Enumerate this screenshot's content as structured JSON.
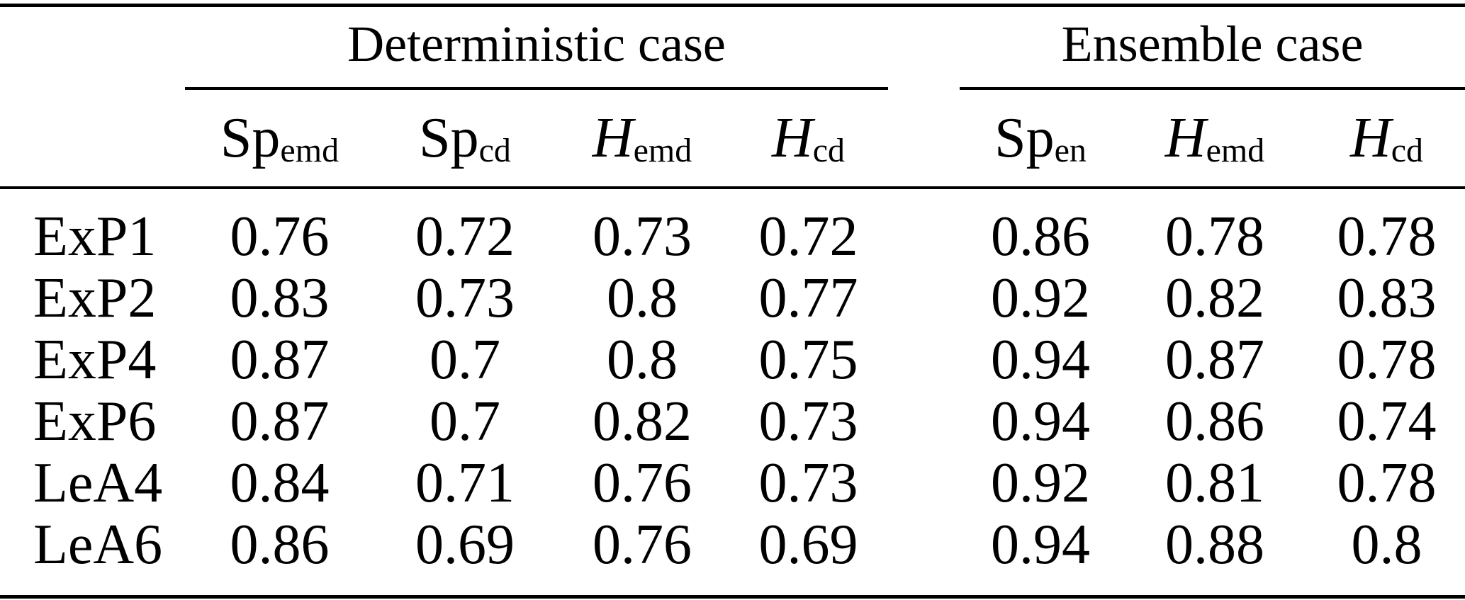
{
  "table": {
    "groups": [
      "Deterministic case",
      "Ensemble case"
    ],
    "columns": [
      {
        "base": "Sp",
        "sub": "emd"
      },
      {
        "base": "Sp",
        "sub": "cd"
      },
      {
        "base": "H",
        "sub": "emd"
      },
      {
        "base": "H",
        "sub": "cd"
      },
      {
        "base": "Sp",
        "sub": "en"
      },
      {
        "base": "H",
        "sub": "emd"
      },
      {
        "base": "H",
        "sub": "cd"
      }
    ],
    "rows": [
      {
        "label": "ExP1",
        "det": [
          "0.76",
          "0.72",
          "0.73",
          "0.72"
        ],
        "ens": [
          "0.86",
          "0.78",
          "0.78"
        ]
      },
      {
        "label": "ExP2",
        "det": [
          "0.83",
          "0.73",
          "0.8",
          "0.77"
        ],
        "ens": [
          "0.92",
          "0.82",
          "0.83"
        ]
      },
      {
        "label": "ExP4",
        "det": [
          "0.87",
          "0.7",
          "0.8",
          "0.75"
        ],
        "ens": [
          "0.94",
          "0.87",
          "0.78"
        ]
      },
      {
        "label": "ExP6",
        "det": [
          "0.87",
          "0.7",
          "0.82",
          "0.73"
        ],
        "ens": [
          "0.94",
          "0.86",
          "0.74"
        ]
      },
      {
        "label": "LeA4",
        "det": [
          "0.84",
          "0.71",
          "0.76",
          "0.73"
        ],
        "ens": [
          "0.92",
          "0.81",
          "0.78"
        ]
      },
      {
        "label": "LeA6",
        "det": [
          "0.86",
          "0.69",
          "0.76",
          "0.69"
        ],
        "ens": [
          "0.94",
          "0.88",
          "0.8"
        ]
      }
    ]
  },
  "colors": {
    "background": "#ffffff",
    "text": "#000000",
    "rule": "#000000"
  }
}
